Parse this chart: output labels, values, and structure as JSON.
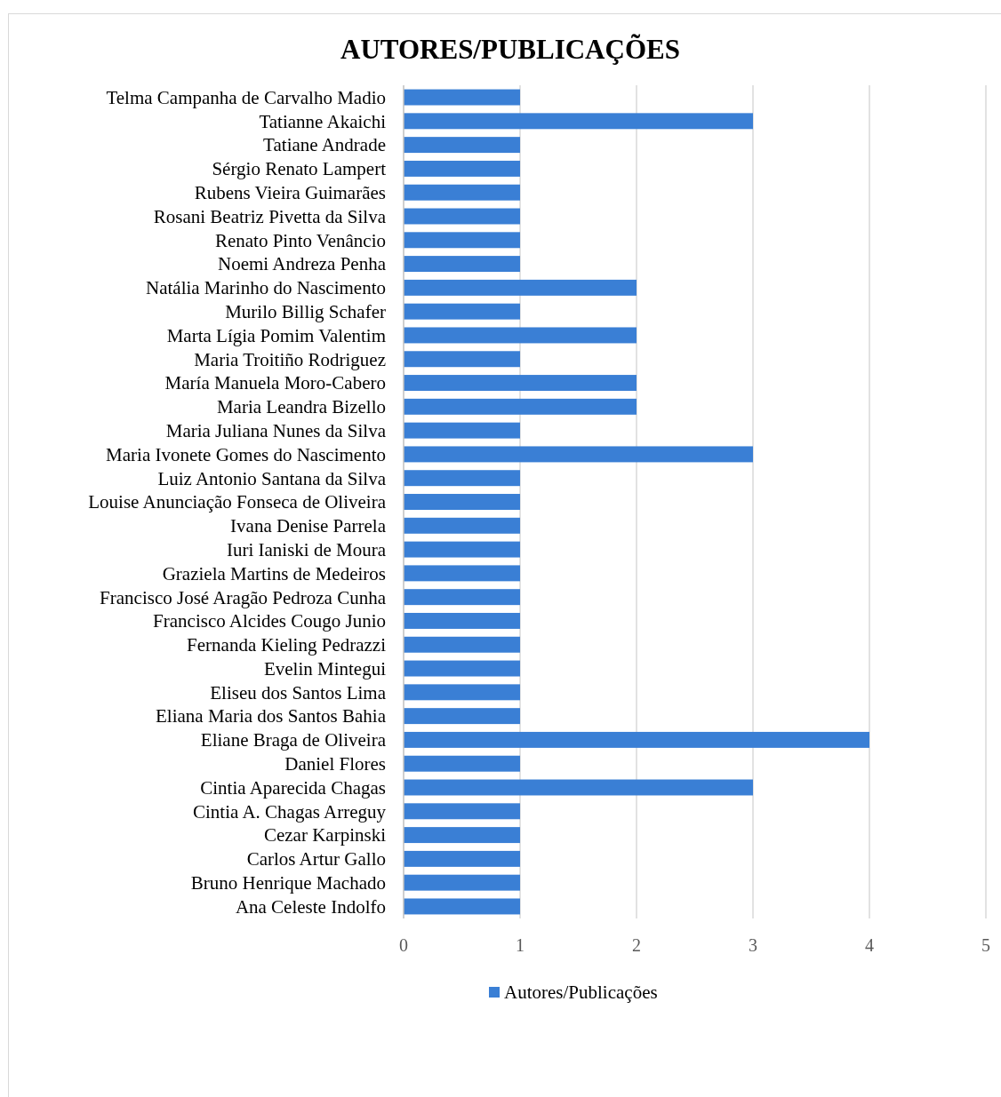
{
  "chart_data": {
    "type": "bar",
    "orientation": "horizontal",
    "title": "AUTORES/PUBLICAÇÕES",
    "categories": [
      "Telma Campanha de Carvalho Madio",
      "Tatianne Akaichi",
      "Tatiane Andrade",
      "Sérgio Renato Lampert",
      "Rubens Vieira Guimarães",
      "Rosani Beatriz Pivetta da Silva",
      "Renato Pinto Venâncio",
      "Noemi Andreza Penha",
      "Natália Marinho do Nascimento",
      "Murilo Billig Schafer",
      "Marta Lígia Pomim Valentim",
      "Maria Troitiño Rodriguez",
      "María Manuela Moro-Cabero",
      "Maria Leandra Bizello",
      "Maria Juliana Nunes da Silva",
      "Maria Ivonete Gomes do Nascimento",
      "Luiz Antonio Santana da Silva",
      "Louise Anunciação Fonseca de Oliveira",
      "Ivana Denise Parrela",
      "Iuri Ianiski de Moura",
      "Graziela Martins de Medeiros",
      "Francisco José Aragão Pedroza Cunha",
      "Francisco Alcides Cougo Junio",
      "Fernanda Kieling Pedrazzi",
      "Evelin Mintegui",
      "Eliseu dos Santos Lima",
      "Eliana Maria dos Santos Bahia",
      "Eliane Braga de Oliveira",
      "Daniel Flores",
      "Cintia Aparecida Chagas",
      "Cintia A. Chagas Arreguy",
      "Cezar Karpinski",
      "Carlos Artur Gallo",
      "Bruno Henrique Machado",
      "Ana Celeste Indolfo"
    ],
    "series": [
      {
        "name": "Autores/Publicações",
        "color": "#3a7fd5",
        "values": [
          1,
          3,
          1,
          1,
          1,
          1,
          1,
          1,
          2,
          1,
          2,
          1,
          2,
          2,
          1,
          3,
          1,
          1,
          1,
          1,
          1,
          1,
          1,
          1,
          1,
          1,
          1,
          4,
          1,
          3,
          1,
          1,
          1,
          1,
          1
        ]
      }
    ],
    "xlim": [
      0,
      5
    ],
    "xticks": [
      0,
      1,
      2,
      3,
      4,
      5
    ],
    "grid": "x",
    "legend": "bottom"
  }
}
